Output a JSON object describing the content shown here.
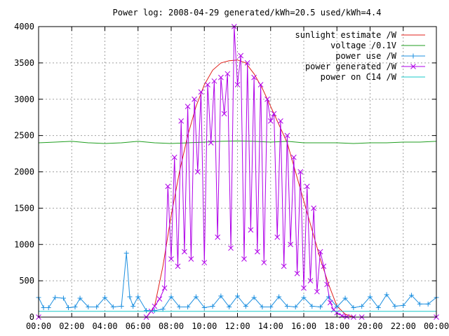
{
  "chart_data": {
    "type": "line",
    "title": "Power log: 2008-04-29 generated/kWh=20.5 used/kWh=4.4",
    "xlabel": "",
    "ylabel": "",
    "x_ticks": [
      "00:00",
      "02:00",
      "04:00",
      "06:00",
      "08:00",
      "10:00",
      "12:00",
      "14:00",
      "16:00",
      "18:00",
      "20:00",
      "22:00",
      "00:00"
    ],
    "x_range_hours": [
      0,
      24
    ],
    "ylim": [
      0,
      4000
    ],
    "y_ticks": [
      0,
      500,
      1000,
      1500,
      2000,
      2500,
      3000,
      3500,
      4000
    ],
    "grid": true,
    "legend_position": "top-right",
    "series": [
      {
        "name": "sunlight estimate /W",
        "color": "#e0201b",
        "marker": "none",
        "x": [
          0,
          6.5,
          7,
          7.5,
          8,
          8.5,
          9,
          9.5,
          10,
          10.5,
          11,
          11.5,
          12,
          12.5,
          13,
          13.5,
          14,
          14.5,
          15,
          15.5,
          16,
          16.5,
          17,
          17.5,
          18,
          18.5,
          19,
          24
        ],
        "y": [
          0,
          0,
          150,
          700,
          1400,
          2000,
          2500,
          2900,
          3200,
          3400,
          3500,
          3530,
          3540,
          3500,
          3350,
          3150,
          2900,
          2650,
          2400,
          2000,
          1600,
          1200,
          800,
          450,
          150,
          40,
          0,
          0
        ]
      },
      {
        "name": "voltage /0.1V",
        "color": "#1f9e1f",
        "marker": "none",
        "x": [
          0,
          1,
          2,
          3,
          4,
          5,
          6,
          7,
          8,
          9,
          10,
          11,
          12,
          13,
          14,
          15,
          16,
          17,
          18,
          19,
          20,
          21,
          22,
          23,
          24
        ],
        "y": [
          2400,
          2410,
          2420,
          2400,
          2390,
          2400,
          2420,
          2400,
          2390,
          2400,
          2410,
          2420,
          2425,
          2420,
          2410,
          2420,
          2400,
          2400,
          2400,
          2390,
          2400,
          2400,
          2410,
          2410,
          2420
        ]
      },
      {
        "name": "power use /W",
        "color": "#1e90e0",
        "marker": "plus",
        "x": [
          0,
          0.3,
          0.6,
          1,
          1.5,
          1.8,
          2.2,
          2.5,
          3,
          3.5,
          4,
          4.5,
          5,
          5.3,
          5.5,
          5.7,
          6,
          6.5,
          7,
          7.5,
          8,
          8.5,
          9,
          9.5,
          10,
          10.5,
          11,
          11.5,
          12,
          12.5,
          13,
          13.5,
          14,
          14.5,
          15,
          15.5,
          16,
          16.5,
          17,
          17.5,
          18,
          18.5,
          19,
          19.5,
          20,
          20.5,
          21,
          21.5,
          22,
          22.5,
          23,
          23.5,
          24
        ],
        "y": [
          270,
          130,
          130,
          270,
          260,
          130,
          140,
          260,
          140,
          140,
          270,
          140,
          150,
          880,
          280,
          150,
          280,
          90,
          90,
          110,
          280,
          140,
          140,
          280,
          130,
          150,
          290,
          140,
          290,
          150,
          270,
          140,
          140,
          280,
          150,
          140,
          270,
          150,
          140,
          280,
          140,
          260,
          130,
          150,
          280,
          130,
          310,
          150,
          160,
          300,
          180,
          180,
          270
        ]
      },
      {
        "name": "power generated /W",
        "color": "#b000e8",
        "marker": "cross",
        "x": [
          0,
          6.5,
          6.8,
          7,
          7.3,
          7.6,
          7.8,
          8,
          8.2,
          8.4,
          8.6,
          8.8,
          9,
          9.2,
          9.4,
          9.6,
          9.8,
          10,
          10.2,
          10.4,
          10.6,
          10.8,
          11,
          11.2,
          11.4,
          11.6,
          11.8,
          12,
          12.2,
          12.4,
          12.6,
          12.8,
          13,
          13.2,
          13.4,
          13.6,
          13.8,
          14,
          14.2,
          14.4,
          14.6,
          14.8,
          15,
          15.2,
          15.4,
          15.6,
          15.8,
          16,
          16.2,
          16.4,
          16.6,
          16.8,
          17,
          17.2,
          17.4,
          17.6,
          17.8,
          18,
          18.3,
          18.6,
          19,
          19.5,
          24
        ],
        "y": [
          0,
          0,
          80,
          150,
          250,
          400,
          1800,
          800,
          2200,
          700,
          2700,
          900,
          2900,
          800,
          3000,
          2000,
          3100,
          750,
          3200,
          2400,
          3250,
          1100,
          3300,
          2800,
          3350,
          950,
          4000,
          3200,
          3600,
          800,
          3500,
          1200,
          3300,
          900,
          3200,
          750,
          3000,
          2700,
          2800,
          1100,
          2700,
          700,
          2500,
          1000,
          2200,
          600,
          2000,
          400,
          1800,
          500,
          1500,
          350,
          900,
          700,
          450,
          200,
          100,
          60,
          20,
          5,
          0,
          0,
          0
        ]
      },
      {
        "name": "power on C14 /W",
        "color": "#19c8c8",
        "marker": "none",
        "x": [
          0,
          24
        ],
        "y": [
          80,
          80
        ]
      }
    ]
  }
}
